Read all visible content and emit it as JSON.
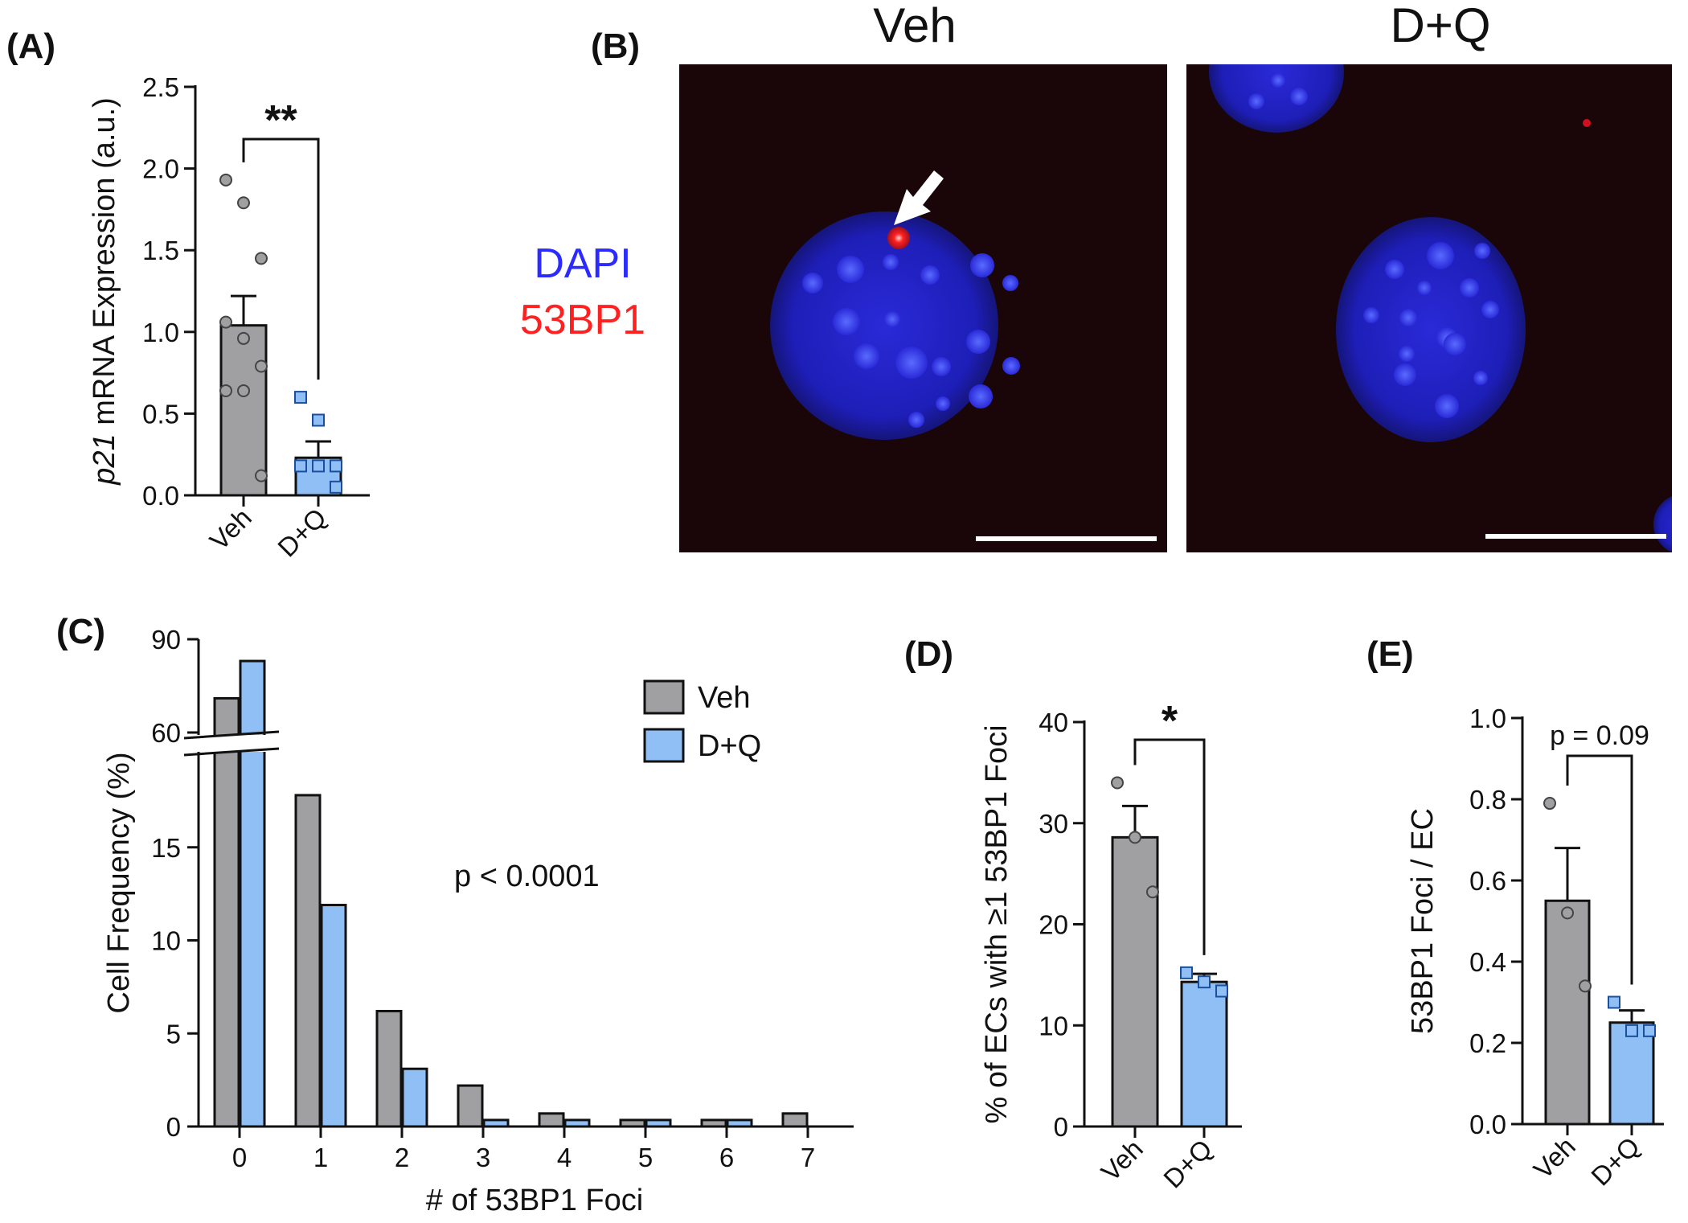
{
  "panels": {
    "A": "(A)",
    "B": "(B)",
    "C": "(C)",
    "D": "(D)",
    "E": "(E)"
  },
  "micrograph": {
    "veh_title": "Veh",
    "dq_title": "D+Q",
    "stain_dapi": "DAPI",
    "stain_53bp1": "53BP1",
    "colors": {
      "dapi": "#2b2bff",
      "53bp1": "#ff2020",
      "background": "#1a0508"
    }
  },
  "colors": {
    "veh": "#a0a0a2",
    "dq": "#8fbff5"
  },
  "chart_data": [
    {
      "id": "A",
      "type": "bar",
      "categories": [
        "Veh",
        "D+Q"
      ],
      "values": [
        1.04,
        0.23
      ],
      "sem": [
        0.18,
        0.1
      ],
      "points": [
        [
          1.93,
          1.79,
          1.45,
          1.06,
          0.96,
          0.79,
          0.64,
          0.64,
          0.12
        ],
        [
          0.6,
          0.46,
          0.18,
          0.18,
          0.18,
          0.05
        ]
      ],
      "ylabel_italic": "p21",
      "ylabel_rest": " mRNA Expression (a.u.)",
      "ylim": [
        0,
        2.5
      ],
      "yticks": [
        "0.0",
        "0.5",
        "1.0",
        "1.5",
        "2.0",
        "2.5"
      ],
      "significance": "**"
    },
    {
      "id": "C",
      "type": "bar",
      "categories": [
        "0",
        "1",
        "2",
        "3",
        "4",
        "5",
        "6",
        "7"
      ],
      "series": [
        {
          "name": "Veh",
          "values": [
            71,
            17.8,
            6.2,
            2.2,
            0.7,
            0.35,
            0.35,
            0.7
          ]
        },
        {
          "name": "D+Q",
          "values": [
            83,
            11.9,
            3.1,
            0.35,
            0.35,
            0.35,
            0.35,
            0
          ]
        }
      ],
      "xlabel": "# of 53BP1 Foci",
      "ylabel": "Cell  Frequency (%)",
      "yticks_lower": [
        "0",
        "5",
        "10",
        "15"
      ],
      "yticks_upper": [
        "60",
        "90"
      ],
      "ylim_lower": [
        0,
        20
      ],
      "ylim_upper": [
        60,
        90
      ],
      "annotation": "p < 0.0001",
      "legend_position": "top-right"
    },
    {
      "id": "D",
      "type": "bar",
      "categories": [
        "Veh",
        "D+Q"
      ],
      "values": [
        28.6,
        14.3
      ],
      "sem": [
        3.1,
        0.8
      ],
      "points": [
        [
          34,
          28.6,
          23.2
        ],
        [
          15.2,
          14.3,
          13.4
        ]
      ],
      "ylabel": "% of ECs with ≥1 53BP1 Foci",
      "ylim": [
        0,
        40
      ],
      "yticks": [
        "0",
        "10",
        "20",
        "30",
        "40"
      ],
      "significance": "*"
    },
    {
      "id": "E",
      "type": "bar",
      "categories": [
        "Veh",
        "D+Q"
      ],
      "values": [
        0.55,
        0.25
      ],
      "sem": [
        0.13,
        0.03
      ],
      "points": [
        [
          0.79,
          0.52,
          0.34
        ],
        [
          0.3,
          0.23,
          0.23
        ]
      ],
      "ylabel": "53BP1 Foci / EC",
      "ylim": [
        0,
        1.0
      ],
      "yticks": [
        "0.0",
        "0.2",
        "0.4",
        "0.6",
        "0.8",
        "1.0"
      ],
      "significance": "p = 0.09"
    }
  ]
}
